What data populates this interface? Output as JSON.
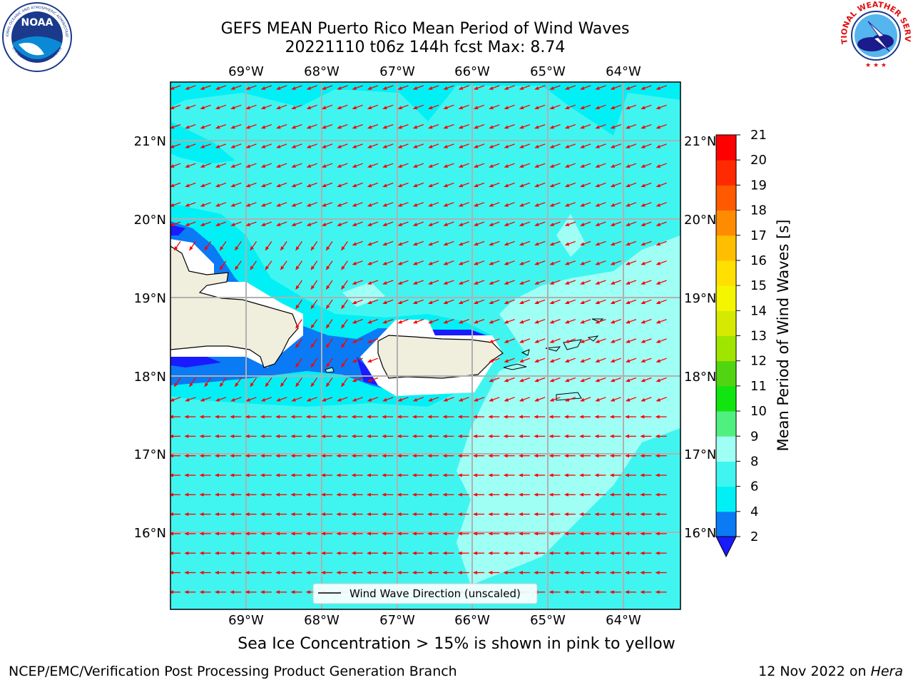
{
  "header": {
    "title_line1": "GEFS MEAN Puerto Rico Mean Period of Wind Waves",
    "title_line2": "20221110 t06z 144h fcst   Max: 8.74"
  },
  "logos": {
    "noaa_text": "NOAA",
    "noaa_ring_top": "NATIONAL OCEANIC AND ATMOSPHERIC ADMINISTRATION",
    "noaa_ring_bottom": "U.S. DEPARTMENT OF COMMERCE",
    "nws_ring": "NATIONAL WEATHER SERVICE"
  },
  "map": {
    "lon_labels": [
      "69°W",
      "68°W",
      "67°W",
      "66°W",
      "65°W",
      "64°W"
    ],
    "lat_labels": [
      "21°N",
      "20°N",
      "19°N",
      "18°N",
      "17°N",
      "16°N"
    ],
    "legend_label": "Wind Wave Direction (unscaled)",
    "arrow_color": "#ff0000",
    "land_color": "#f0eedc"
  },
  "colorbar": {
    "label": "Mean Period of Wind Waves [s]",
    "ticks": [
      "2",
      "4",
      "6",
      "8",
      "9",
      "10",
      "11",
      "12",
      "13",
      "14",
      "15",
      "16",
      "17",
      "18",
      "19",
      "20",
      "21"
    ],
    "colors": [
      "#1a1aff",
      "#0a7af5",
      "#00f0f5",
      "#40f5f0",
      "#a0fff5",
      "#50f080",
      "#10e510",
      "#50d510",
      "#a0e500",
      "#d5ea00",
      "#f5f500",
      "#ffe000",
      "#ffbe00",
      "#ff8c00",
      "#ff5a00",
      "#ff2a00",
      "#ff0000"
    ]
  },
  "caption": "Sea Ice Concentration > 15% is shown in pink to yellow",
  "footer": {
    "left": "NCEP/EMC/Verification Post Processing Product Generation Branch",
    "right_prefix": "12 Nov 2022 on ",
    "right_host": "Hera"
  }
}
